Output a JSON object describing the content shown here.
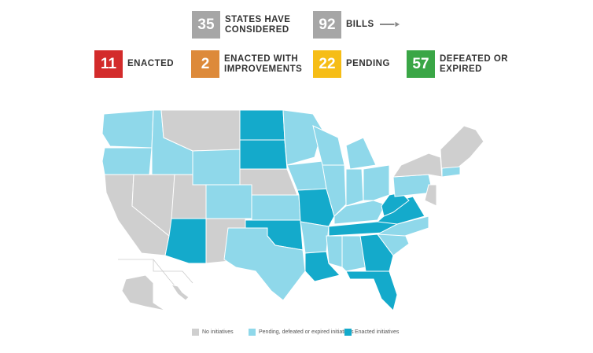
{
  "stats": [
    {
      "number": 35,
      "label": "STATES HAVE CONSIDERED"
    },
    {
      "number": 92,
      "label": "BILLS"
    },
    {
      "number": 11,
      "label": "ENACTED"
    },
    {
      "number": 2,
      "label": "ENACTED WITH IMPROVEMENTS"
    },
    {
      "number": 22,
      "label": "PENDING"
    },
    {
      "number": 57,
      "label": "DEFEATED OR EXPIRED"
    }
  ],
  "legend": [
    "No initiatives",
    "Pending, defeated or expired initiatives",
    "Enacted initiatives"
  ]
}
